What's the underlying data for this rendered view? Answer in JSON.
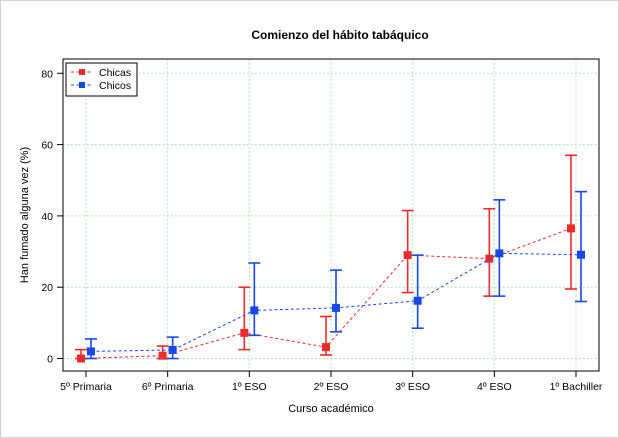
{
  "chart_data": {
    "type": "line",
    "title": "Comienzo del hábito tabáquico",
    "xlabel": "Curso académico",
    "ylabel": "Han fumado alguna vez (%)",
    "categories": [
      "5º Primaria",
      "6º Primaria",
      "1º ESO",
      "2º ESO",
      "3º ESO",
      "4º ESO",
      "1º Bachiller"
    ],
    "ylim": [
      -3.5,
      84
    ],
    "yticks": [
      0,
      20,
      40,
      60,
      80
    ],
    "grid": true,
    "legend_position": "top-left",
    "series": [
      {
        "name": "Chicas",
        "color": "#ee2b2b",
        "values": [
          0,
          0.8,
          7.2,
          3.2,
          29,
          28,
          36.5
        ],
        "lower": [
          0,
          0,
          2.5,
          1.0,
          18.5,
          17.5,
          19.5
        ],
        "upper": [
          2.5,
          3.5,
          20,
          11.8,
          41.5,
          42,
          57
        ]
      },
      {
        "name": "Chicos",
        "color": "#1a48e8",
        "values": [
          2,
          2.4,
          13.5,
          14.2,
          16.2,
          29.5,
          29.1
        ],
        "lower": [
          0,
          0,
          6.5,
          7.5,
          8.5,
          17.5,
          16.0
        ],
        "upper": [
          5.5,
          6.0,
          26.8,
          24.8,
          29,
          44.5,
          46.8
        ]
      }
    ]
  }
}
